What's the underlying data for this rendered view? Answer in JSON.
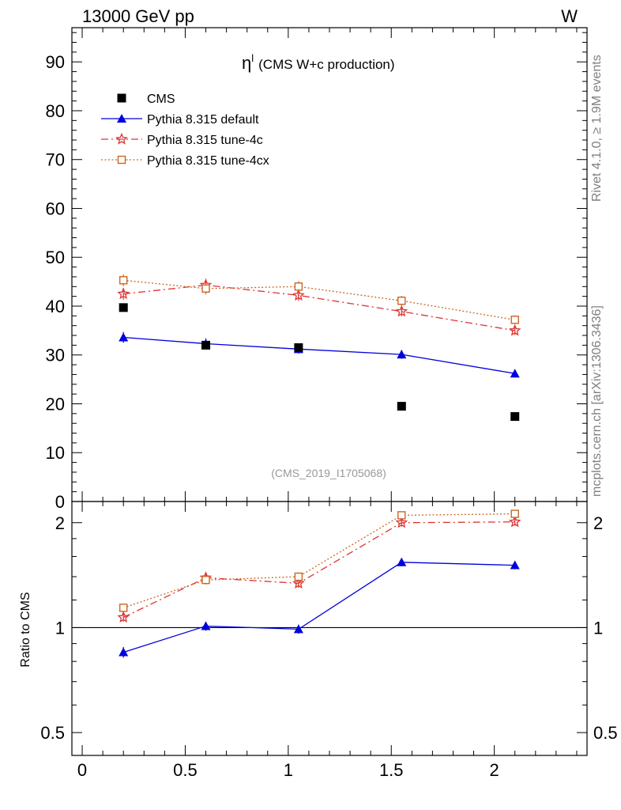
{
  "header": {
    "energy_label": "13000 GeV pp",
    "process_label": "W"
  },
  "side_labels": {
    "rivet": "Rivet 4.1.0, ≥ 1.9M events",
    "mcplots": "mcplots.cern.ch [arXiv:1306.3436]"
  },
  "chart_data": [
    {
      "type": "scatter",
      "panel": "main",
      "title": "η",
      "title_superscript": "l",
      "title_suffix": "(CMS W+c production)",
      "analysis_tag": "(CMS_2019_I1705068)",
      "xlim": [
        -0.05,
        2.45
      ],
      "ylim": [
        0,
        97
      ],
      "yticks": [
        0,
        10,
        20,
        30,
        40,
        50,
        60,
        70,
        80,
        90
      ],
      "ytick_labels": [
        "0",
        "10",
        "20",
        "30",
        "40",
        "50",
        "60",
        "70",
        "80",
        "90"
      ],
      "legend_position": "top-left",
      "x": [
        0.2,
        0.6,
        1.05,
        1.55,
        2.1
      ],
      "series": [
        {
          "name": "CMS",
          "color": "#000000",
          "marker": "square",
          "line": "none",
          "values": [
            39.7,
            32.0,
            31.5,
            19.5,
            17.4
          ],
          "errors": [
            0,
            0,
            0,
            0,
            0
          ]
        },
        {
          "name": "Pythia 8.315 default",
          "color": "#0000dd",
          "marker": "triangle",
          "line": "solid",
          "values": [
            33.6,
            32.3,
            31.2,
            30.1,
            26.2
          ],
          "errors": [
            1.1,
            1.1,
            0.9,
            0.9,
            0.8
          ]
        },
        {
          "name": "Pythia 8.315 tune-4c",
          "color": "#dd3333",
          "marker": "star",
          "line": "dashdot",
          "values": [
            42.5,
            44.3,
            42.2,
            38.9,
            35.0
          ],
          "errors": [
            1.2,
            1.3,
            1.1,
            1.0,
            0.9
          ]
        },
        {
          "name": "Pythia 8.315 tune-4cx",
          "color": "#cc6622",
          "marker": "open-square",
          "line": "dotted",
          "values": [
            45.3,
            43.6,
            44.0,
            41.1,
            37.2
          ],
          "errors": [
            1.2,
            1.2,
            1.1,
            1.0,
            0.9
          ]
        }
      ]
    },
    {
      "type": "scatter",
      "panel": "ratio",
      "ylabel": "Ratio to CMS",
      "yscale": "log",
      "ylim": [
        0.43,
        2.3
      ],
      "yticks": [
        0.5,
        1,
        2
      ],
      "ytick_labels": [
        "0.5",
        "1",
        "2"
      ],
      "reference_line": 1,
      "xticks": [
        0,
        0.5,
        1,
        1.5,
        2
      ],
      "xtick_labels": [
        "0",
        "0.5",
        "1",
        "1.5",
        "2"
      ],
      "x": [
        0.2,
        0.6,
        1.05,
        1.55,
        2.1
      ],
      "series": [
        {
          "name": "Pythia 8.315 default",
          "values": [
            0.85,
            1.01,
            0.99,
            1.54,
            1.51
          ],
          "errors": [
            0.03,
            0.03,
            0.03,
            0.04,
            0.04
          ]
        },
        {
          "name": "Pythia 8.315 tune-4c",
          "values": [
            1.07,
            1.39,
            1.34,
            2.0,
            2.01
          ],
          "errors": [
            0.03,
            0.04,
            0.04,
            0.05,
            0.05
          ]
        },
        {
          "name": "Pythia 8.315 tune-4cx",
          "values": [
            1.14,
            1.37,
            1.4,
            2.1,
            2.12
          ],
          "errors": [
            0.03,
            0.04,
            0.04,
            0.05,
            0.05
          ]
        }
      ]
    }
  ]
}
